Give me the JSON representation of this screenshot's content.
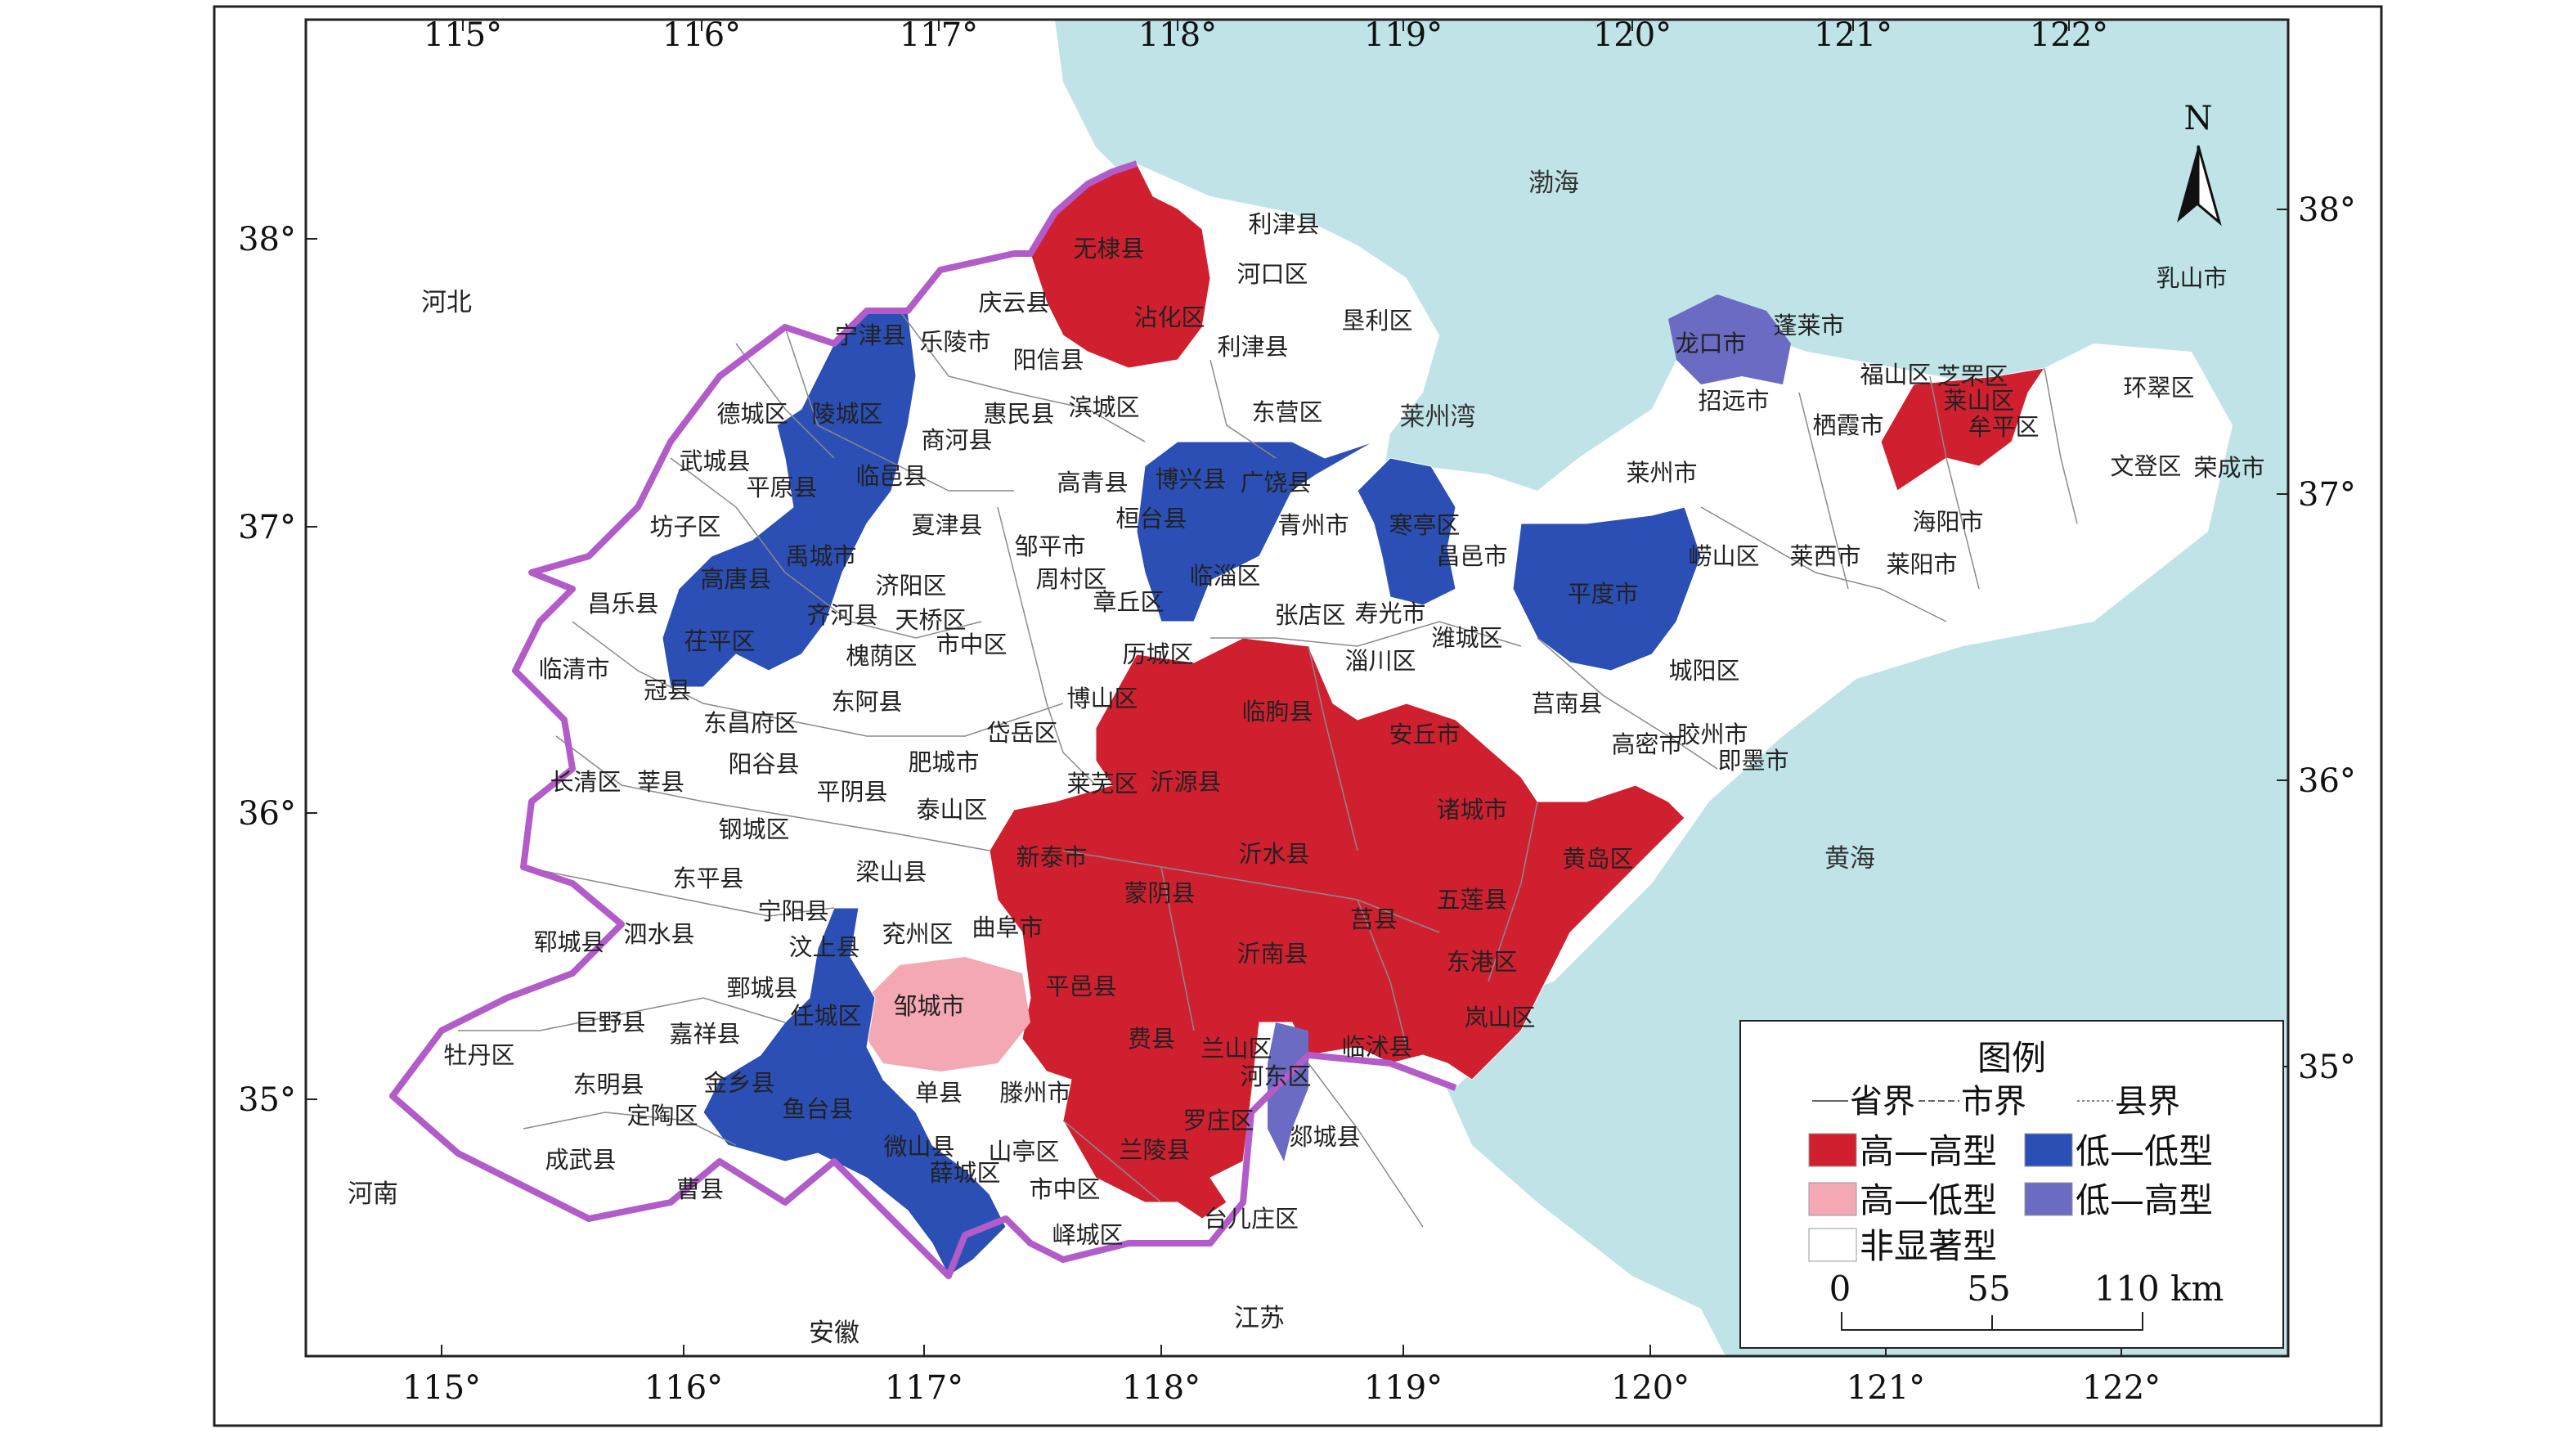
{
  "map": {
    "longitude_ticks": [
      "115°",
      "116°",
      "117°",
      "118°",
      "119°",
      "120°",
      "121°",
      "122°"
    ],
    "latitude_ticks": [
      "38°",
      "37°",
      "36°",
      "35°"
    ],
    "north_arrow": {
      "label": "N",
      "icon": "north-arrow-icon"
    },
    "seas": {
      "bohai": "渤海",
      "laizhou_bay": "莱州湾",
      "yellow_sea": "黄海"
    },
    "neighbors": {
      "hebei": "河北",
      "henan": "河南",
      "anhui": "安徽",
      "jiangsu": "江苏"
    },
    "colors": {
      "sea": "#bfe3e7",
      "land": "#ffffff",
      "province_border": "#b25cc9",
      "high_high": "#d02030",
      "low_low": "#2b4fb5",
      "high_low": "#f4a8b4",
      "low_high": "#6b6bc4",
      "not_significant": "#ffffff"
    },
    "counties": {
      "high_high": [
        "无棣县",
        "沾化区",
        "新泰市",
        "蒙阴县",
        "沂水县",
        "莒县",
        "五莲县",
        "诸城市",
        "黄岛区",
        "东港区",
        "岚山区",
        "平邑县",
        "费县",
        "沂南县",
        "兰陵县",
        "兰山区",
        "罗庄区",
        "临朐县",
        "安丘市",
        "沂源县",
        "博山区",
        "莱山区",
        "牟平区"
      ],
      "low_low": [
        "宁津县",
        "陵城区",
        "临邑县",
        "禹城市",
        "高唐县",
        "茌平区",
        "齐河县",
        "任城区",
        "金乡县",
        "鱼台县",
        "微山县",
        "薛城区",
        "桓台县",
        "博兴县",
        "广饶县",
        "临淄区",
        "寒亭区",
        "昌邑市",
        "平度市"
      ],
      "high_low": [
        "邹城市"
      ],
      "low_high": [
        "龙口市",
        "河东区"
      ],
      "other_labels": [
        "利津县",
        "河口区",
        "垦利区",
        "庆云县",
        "乐陵市",
        "阳信县",
        "利津县",
        "东营区",
        "德城区",
        "武城县",
        "平原县",
        "商河县",
        "惠民县",
        "滨城区",
        "高青县",
        "邹平市",
        "周村区",
        "章丘区",
        "张店区",
        "青州市",
        "寿光市",
        "潍城区",
        "坊子区",
        "夏津县",
        "济阳区",
        "天桥区",
        "槐荫区",
        "市中区",
        "历城区",
        "淄川区",
        "昌乐县",
        "临清市",
        "冠县",
        "东昌府区",
        "东阿县",
        "长清区",
        "莘县",
        "阳谷县",
        "平阴县",
        "肥城市",
        "泰山区",
        "岱岳区",
        "莱芜区",
        "钢城区",
        "东平县",
        "梁山县",
        "宁阳县",
        "汶上县",
        "兖州区",
        "曲阜市",
        "泗水县",
        "郓城县",
        "鄄城县",
        "嘉祥县",
        "巨野县",
        "牡丹区",
        "东明县",
        "定陶区",
        "成武县",
        "曹县",
        "单县",
        "滕州市",
        "山亭区",
        "市中区",
        "峄城区",
        "台儿庄区",
        "郯城县",
        "临沭县",
        "莒南县",
        "高密市",
        "胶州市",
        "即墨市",
        "城阳区",
        "崂山区",
        "莱西市",
        "莱阳市",
        "海阳市",
        "乳山市",
        "文登区",
        "荣成市",
        "环翠区",
        "福山区",
        "芝罘区",
        "蓬莱市",
        "招远市",
        "栖霞市",
        "莱州市"
      ]
    },
    "legend": {
      "title": "图例",
      "boundaries": [
        "省界",
        "市界",
        "县界"
      ],
      "items": [
        {
          "label": "高—高型",
          "color_key": "high_high"
        },
        {
          "label": "低—低型",
          "color_key": "low_low"
        },
        {
          "label": "高—低型",
          "color_key": "high_low"
        },
        {
          "label": "低—高型",
          "color_key": "low_high"
        },
        {
          "label": "非显著型",
          "color_key": "not_significant"
        }
      ]
    },
    "scale_bar": {
      "ticks": [
        "0",
        "55",
        "110 km"
      ]
    }
  }
}
